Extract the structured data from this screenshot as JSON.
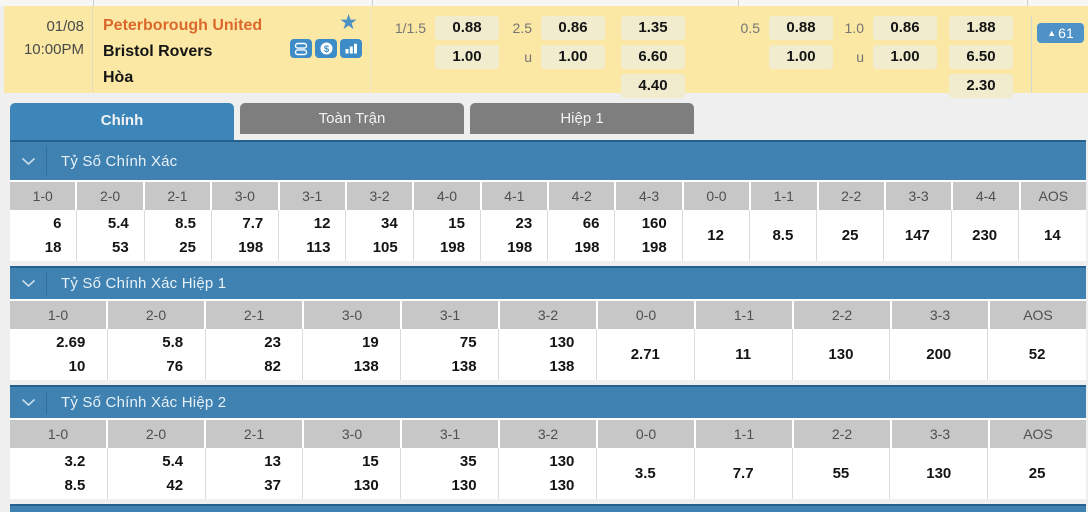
{
  "match": {
    "date": "01/08",
    "time": "10:00PM",
    "home_team": "Peterborough United",
    "away_team": "Bristol Rovers",
    "draw_label": "Hòa",
    "more_bets_count": "61",
    "more_bets_arrow": "▲",
    "star_glyph": "★",
    "odds": {
      "full_time": {
        "handicap_line": "1/1.5",
        "handicap_home": "0.88",
        "handicap_away": "1.00",
        "ou_line": "2.5",
        "ou_over": "0.86",
        "ou_under_label": "u",
        "ou_under": "1.00",
        "x12_home": "1.35",
        "x12_away": "6.60",
        "x12_draw": "4.40"
      },
      "first_half": {
        "handicap_line": "0.5",
        "handicap_home": "0.88",
        "handicap_away": "1.00",
        "ou_line": "1.0",
        "ou_over": "0.86",
        "ou_under_label": "u",
        "ou_under": "1.00",
        "x12_home": "1.88",
        "x12_away": "6.50",
        "x12_draw": "2.30"
      }
    }
  },
  "tabs": [
    {
      "label": "Chính",
      "active": true
    },
    {
      "label": "Toàn Trận",
      "active": false
    },
    {
      "label": "Hiệp 1",
      "active": false
    }
  ],
  "sections": [
    {
      "title": "Tỷ Số Chính Xác",
      "columns": [
        "1-0",
        "2-0",
        "2-1",
        "3-0",
        "3-1",
        "3-2",
        "4-0",
        "4-1",
        "4-2",
        "4-3",
        "0-0",
        "1-1",
        "2-2",
        "3-3",
        "4-4",
        "AOS"
      ],
      "cells": [
        [
          "6",
          "18"
        ],
        [
          "5.4",
          "53"
        ],
        [
          "8.5",
          "25"
        ],
        [
          "7.7",
          "198"
        ],
        [
          "12",
          "113"
        ],
        [
          "34",
          "105"
        ],
        [
          "15",
          "198"
        ],
        [
          "23",
          "198"
        ],
        [
          "66",
          "198"
        ],
        [
          "160",
          "198"
        ],
        [
          "12"
        ],
        [
          "8.5"
        ],
        [
          "25"
        ],
        [
          "147"
        ],
        [
          "230"
        ],
        [
          "14"
        ]
      ]
    },
    {
      "title": "Tỷ Số Chính Xác Hiệp 1",
      "columns": [
        "1-0",
        "2-0",
        "2-1",
        "3-0",
        "3-1",
        "3-2",
        "0-0",
        "1-1",
        "2-2",
        "3-3",
        "AOS"
      ],
      "cells": [
        [
          "2.69",
          "10"
        ],
        [
          "5.8",
          "76"
        ],
        [
          "23",
          "82"
        ],
        [
          "19",
          "138"
        ],
        [
          "75",
          "138"
        ],
        [
          "130",
          "138"
        ],
        [
          "2.71"
        ],
        [
          "11"
        ],
        [
          "130"
        ],
        [
          "200"
        ],
        [
          "52"
        ]
      ]
    },
    {
      "title": "Tỷ Số Chính Xác Hiệp 2",
      "columns": [
        "1-0",
        "2-0",
        "2-1",
        "3-0",
        "3-1",
        "3-2",
        "0-0",
        "1-1",
        "2-2",
        "3-3",
        "AOS"
      ],
      "cells": [
        [
          "3.2",
          "8.5"
        ],
        [
          "5.4",
          "42"
        ],
        [
          "13",
          "37"
        ],
        [
          "15",
          "130"
        ],
        [
          "35",
          "130"
        ],
        [
          "130",
          "130"
        ],
        [
          "3.5"
        ],
        [
          "7.7"
        ],
        [
          "55"
        ],
        [
          "130"
        ],
        [
          "25"
        ]
      ]
    }
  ],
  "colors": {
    "accent_blue": "#3C86BA",
    "section_bar_blue": "#3F81B1",
    "row_yellow": "#FAE8A4",
    "odds_chip_cream": "#F1ECCE",
    "tab_inactive_gray": "#7E7E7E",
    "home_team_orange": "#DD682B",
    "header_cell_gray": "#C7C7C7",
    "badge_blue": "#4E92C8"
  }
}
